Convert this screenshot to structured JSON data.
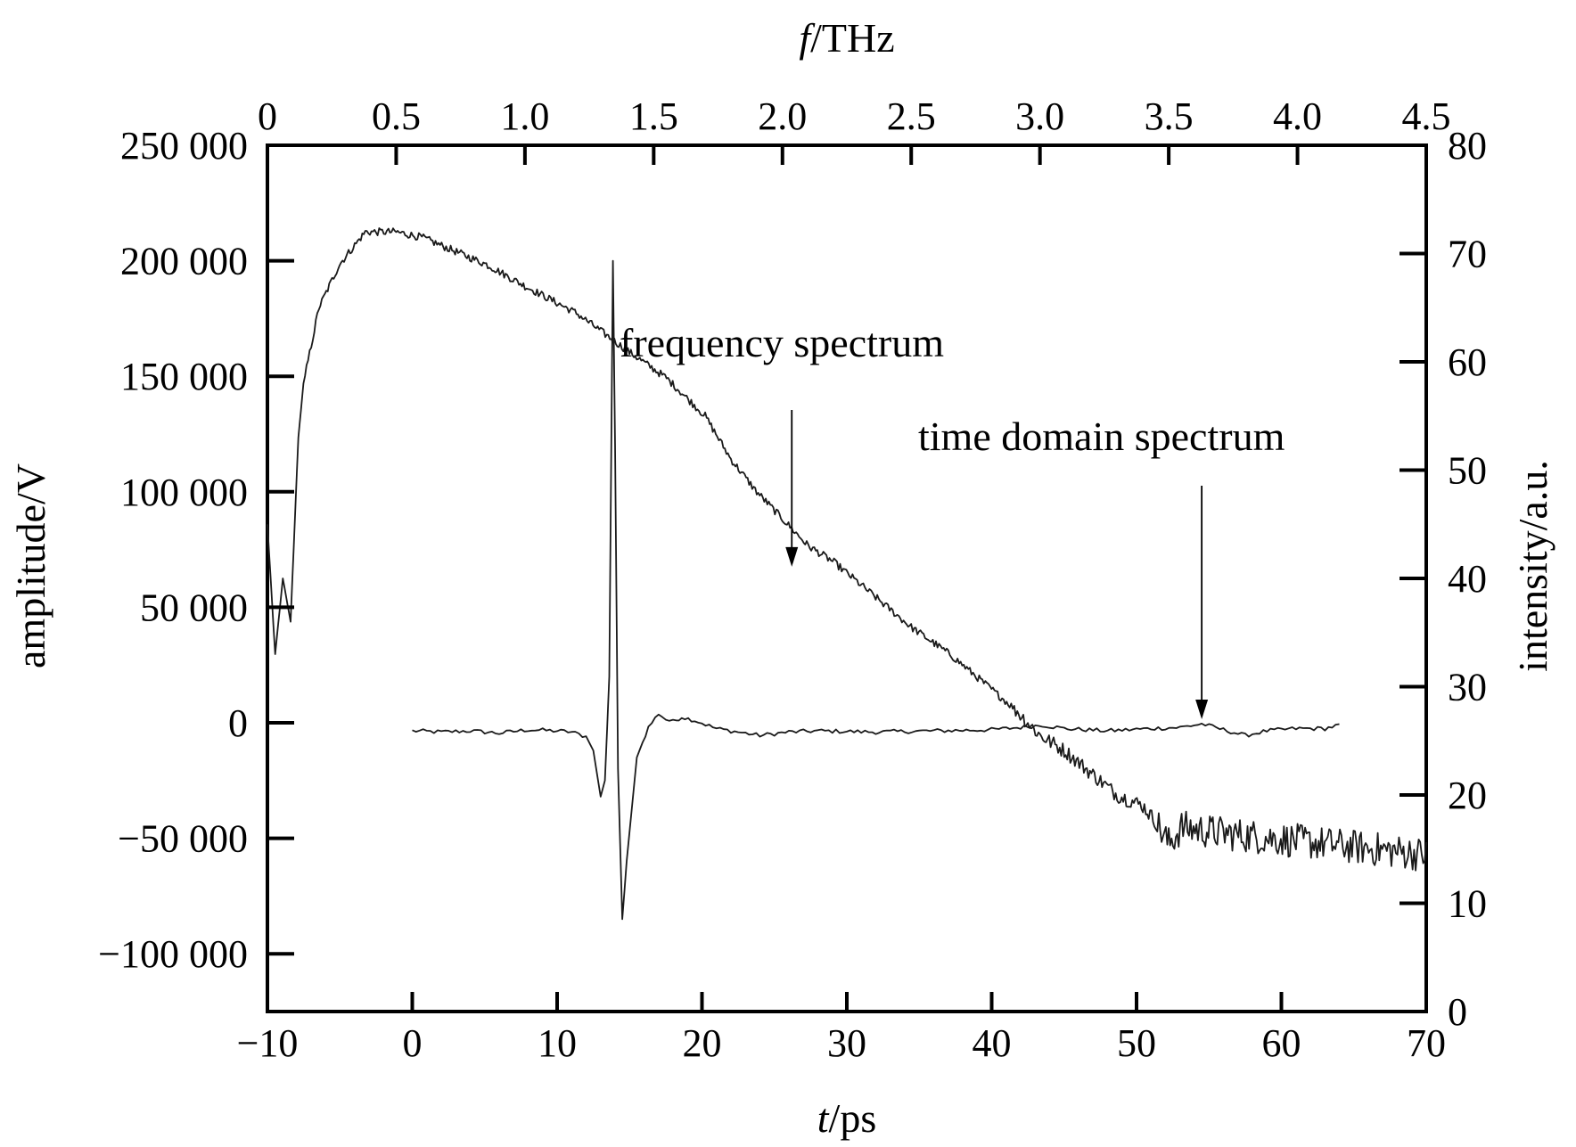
{
  "chart_data": {
    "type": "line",
    "grid": false,
    "axes": {
      "bottom": {
        "label_italic": "t",
        "label_rest": "/ps",
        "range": [
          -10,
          70
        ],
        "ticks": [
          -10,
          0,
          10,
          20,
          30,
          40,
          50,
          60,
          70
        ],
        "tick_labels": [
          "−10",
          "0",
          "10",
          "20",
          "30",
          "40",
          "50",
          "60",
          "70"
        ]
      },
      "top": {
        "label_italic": "f",
        "label_rest": "/THz",
        "range": [
          0,
          4.5
        ],
        "ticks": [
          0,
          0.5,
          1.0,
          1.5,
          2.0,
          2.5,
          3.0,
          3.5,
          4.0,
          4.5
        ],
        "tick_labels": [
          "0",
          "0.5",
          "1.0",
          "1.5",
          "2.0",
          "2.5",
          "3.0",
          "3.5",
          "4.0",
          "4.5"
        ]
      },
      "left": {
        "label": "amplitude/V",
        "range": [
          -125000,
          250000
        ],
        "ticks": [
          -100000,
          -50000,
          0,
          50000,
          100000,
          150000,
          200000,
          250000
        ],
        "tick_labels": [
          "−100 000",
          "−50 000",
          "0",
          "50 000",
          "100 000",
          "150 000",
          "200 000",
          "250 000"
        ]
      },
      "right": {
        "label": "intensity/a.u.",
        "range": [
          0,
          80
        ],
        "ticks": [
          0,
          10,
          20,
          30,
          40,
          50,
          60,
          70,
          80
        ],
        "tick_labels": [
          "0",
          "10",
          "20",
          "30",
          "40",
          "50",
          "60",
          "70",
          "80"
        ]
      }
    },
    "series": [
      {
        "key": "time_domain",
        "x_axis": "bottom",
        "y_axis": "left",
        "noise": 900,
        "points": [
          [
            0,
            -3500
          ],
          [
            2,
            -4000
          ],
          [
            4,
            -3500
          ],
          [
            6,
            -4500
          ],
          [
            8,
            -3000
          ],
          [
            10,
            -3500
          ],
          [
            11,
            -4000
          ],
          [
            12,
            -6000
          ],
          [
            12.5,
            -12000
          ],
          [
            13,
            -32000
          ],
          [
            13.3,
            -25000
          ],
          [
            13.6,
            20000
          ],
          [
            13.85,
            200000
          ],
          [
            14.0,
            120000
          ],
          [
            14.2,
            -20000
          ],
          [
            14.5,
            -85000
          ],
          [
            14.8,
            -60000
          ],
          [
            15.5,
            -15000
          ],
          [
            16.3,
            -2000
          ],
          [
            17.0,
            4000
          ],
          [
            17.5,
            1500
          ],
          [
            18.0,
            500
          ],
          [
            18.6,
            2500
          ],
          [
            19.5,
            1000
          ],
          [
            21,
            -2500
          ],
          [
            22.5,
            -4000
          ],
          [
            24,
            -5500
          ],
          [
            26,
            -4000
          ],
          [
            28,
            -3500
          ],
          [
            32,
            -4000
          ],
          [
            36,
            -3500
          ],
          [
            40,
            -3000
          ],
          [
            42,
            -2000
          ],
          [
            43.5,
            -1000
          ],
          [
            45,
            -2500
          ],
          [
            48,
            -3500
          ],
          [
            51,
            -2500
          ],
          [
            53,
            -2000
          ],
          [
            54.5,
            -500
          ],
          [
            56,
            -3000
          ],
          [
            57.5,
            -5500
          ],
          [
            59,
            -3500
          ],
          [
            61,
            -2500
          ],
          [
            63,
            -2500
          ],
          [
            64,
            -1000
          ]
        ]
      },
      {
        "key": "frequency",
        "x_axis": "top",
        "y_axis": "right",
        "noise": 0.35,
        "noise_late": 1.6,
        "points": [
          [
            0.0,
            45
          ],
          [
            0.03,
            33
          ],
          [
            0.06,
            40
          ],
          [
            0.09,
            36
          ],
          [
            0.12,
            53
          ],
          [
            0.14,
            58
          ],
          [
            0.2,
            65
          ],
          [
            0.28,
            69
          ],
          [
            0.38,
            72
          ],
          [
            0.5,
            72
          ],
          [
            0.6,
            71.5
          ],
          [
            0.7,
            70.5
          ],
          [
            0.85,
            69
          ],
          [
            1.0,
            67
          ],
          [
            1.2,
            64.5
          ],
          [
            1.4,
            61
          ],
          [
            1.55,
            58.5
          ],
          [
            1.7,
            55
          ],
          [
            1.8,
            51
          ],
          [
            1.9,
            48
          ],
          [
            2.0,
            45.5
          ],
          [
            2.1,
            43
          ],
          [
            2.2,
            41.5
          ],
          [
            2.35,
            38.5
          ],
          [
            2.5,
            35.5
          ],
          [
            2.65,
            33
          ],
          [
            2.8,
            30
          ],
          [
            2.9,
            28
          ],
          [
            3.0,
            25.5
          ],
          [
            3.1,
            24
          ],
          [
            3.2,
            22
          ],
          [
            3.3,
            20
          ],
          [
            3.4,
            19
          ],
          [
            3.45,
            17.5
          ],
          [
            3.5,
            15.5
          ],
          [
            3.55,
            17
          ],
          [
            3.7,
            16.5
          ],
          [
            3.9,
            16
          ],
          [
            4.1,
            15.5
          ],
          [
            4.3,
            15
          ],
          [
            4.5,
            14.5
          ]
        ]
      }
    ],
    "annotations": [
      {
        "text": "frequency spectrum",
        "arrow_x_axis": "bottom",
        "arrow_x": 26.2,
        "arrow_to_y": 66000
      },
      {
        "text": "time domain spectrum",
        "arrow_x_axis": "bottom",
        "arrow_x": 54.5,
        "arrow_to_y": 0
      }
    ]
  }
}
